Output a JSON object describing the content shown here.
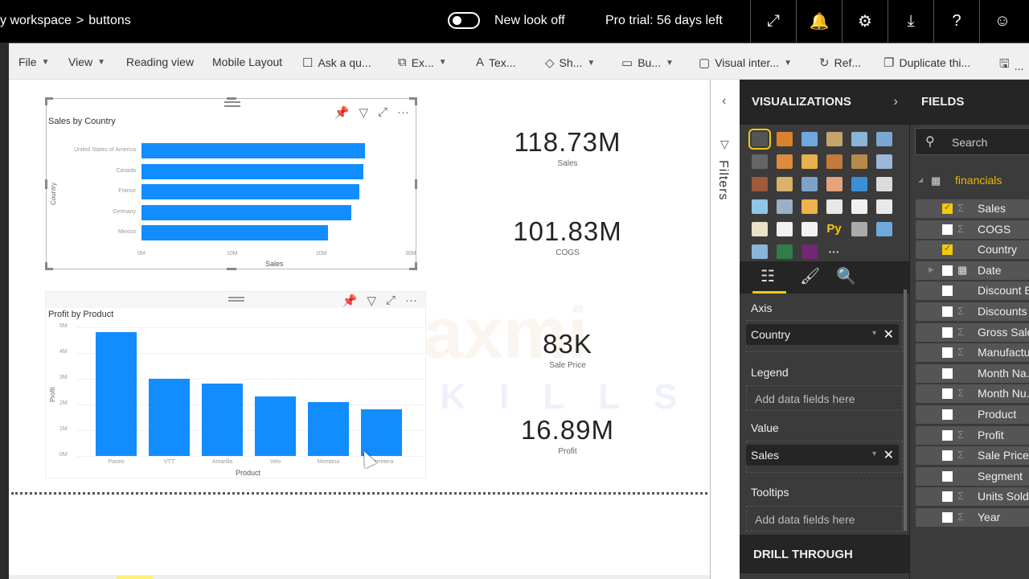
{
  "topbar": {
    "breadcrumb": [
      "y workspace",
      "buttons"
    ],
    "breadcrumb_separator": ">",
    "new_look_label": "New look off",
    "new_look_on": false,
    "trial_text": "Pro trial: 56 days left",
    "icons": [
      "expand-icon",
      "bell-icon",
      "gear-icon",
      "download-icon",
      "help-icon",
      "smiley-icon"
    ],
    "icon_glyphs": [
      "⤢",
      "🔔",
      "⚙",
      "⤓",
      "?",
      "☺"
    ]
  },
  "ribbon": {
    "items": [
      {
        "label": "File",
        "dropdown": true,
        "icon": ""
      },
      {
        "label": "View",
        "dropdown": true,
        "icon": ""
      },
      {
        "label": "Reading view",
        "dropdown": false,
        "icon": ""
      },
      {
        "label": "Mobile Layout",
        "dropdown": false,
        "icon": ""
      },
      {
        "label": "Ask a qu...",
        "dropdown": false,
        "icon": "☐"
      },
      {
        "label": "Ex...",
        "dropdown": true,
        "icon": "⧉"
      },
      {
        "label": "Tex...",
        "dropdown": false,
        "icon": "A"
      },
      {
        "label": "Sh...",
        "dropdown": true,
        "icon": "◇"
      },
      {
        "label": "Bu...",
        "dropdown": true,
        "icon": "▭"
      },
      {
        "label": "Visual inter...",
        "dropdown": true,
        "icon": "▢"
      },
      {
        "label": "Ref...",
        "dropdown": false,
        "icon": "↻"
      },
      {
        "label": "Duplicate thi...",
        "dropdown": false,
        "icon": "❐"
      },
      {
        "label": "...",
        "dropdown": false,
        "icon": "🖫"
      }
    ]
  },
  "canvas": {
    "watermark": "Laxmi",
    "watermark_sub": "SKILLS",
    "cards": [
      {
        "value": "118.73M",
        "label": "Sales"
      },
      {
        "value": "101.83M",
        "label": "COGS"
      },
      {
        "value": "83K",
        "label": "Sale Price"
      },
      {
        "value": "16.89M",
        "label": "Profit"
      }
    ]
  },
  "chart_data": [
    {
      "type": "bar",
      "orientation": "horizontal",
      "title": "Sales by Country",
      "categories": [
        "United States of America",
        "Canada",
        "France",
        "Germany",
        "Mexico"
      ],
      "values": [
        25.0,
        24.9,
        24.4,
        23.5,
        20.9
      ],
      "unit": "M",
      "xlabel": "Sales",
      "ylabel": "Country",
      "xticks": [
        "0M",
        "10M",
        "20M",
        "30M"
      ],
      "xlim": [
        0,
        30
      ],
      "color": "#118dff",
      "selected": true
    },
    {
      "type": "bar",
      "orientation": "vertical",
      "title": "Profit by Product",
      "categories": [
        "Paseo",
        "VTT",
        "Amarilla",
        "Velo",
        "Montana",
        "Carretera"
      ],
      "values": [
        4.8,
        3.0,
        2.8,
        2.3,
        2.1,
        1.8
      ],
      "unit": "M",
      "xlabel": "Product",
      "ylabel": "Profit",
      "yticks": [
        "0M",
        "1M",
        "2M",
        "3M",
        "4M",
        "5M"
      ],
      "ylim": [
        0,
        5
      ],
      "grid": true,
      "color": "#118dff"
    }
  ],
  "visual_header_icons": [
    "pin-icon",
    "filter-icon",
    "focus-mode-icon",
    "more-options-icon"
  ],
  "filters": {
    "label": "Filters"
  },
  "visualizations": {
    "title": "VISUALIZATIONS",
    "selected_index": 0,
    "tiles": [
      {
        "name": "stacked-bar",
        "c": "#555"
      },
      {
        "name": "stacked-column",
        "c": "#d9822b"
      },
      {
        "name": "clustered-bar",
        "c": "#6fa8dc"
      },
      {
        "name": "clustered-column",
        "c": "#c5a46d"
      },
      {
        "name": "100-bar",
        "c": "#8ab4d8"
      },
      {
        "name": "100-column",
        "c": "#7aa7cf"
      },
      {
        "name": "line",
        "c": "#666"
      },
      {
        "name": "area",
        "c": "#e08a3c"
      },
      {
        "name": "stacked-area",
        "c": "#e9b04d"
      },
      {
        "name": "line-column",
        "c": "#c47a3a"
      },
      {
        "name": "line-clustered",
        "c": "#b58a4a"
      },
      {
        "name": "ribbon",
        "c": "#9cb8d8"
      },
      {
        "name": "waterfall",
        "c": "#a05a3a"
      },
      {
        "name": "funnel",
        "c": "#d9b36a"
      },
      {
        "name": "scatter",
        "c": "#7da2c9"
      },
      {
        "name": "pie",
        "c": "#e6a27a"
      },
      {
        "name": "donut",
        "c": "#3a8fd6"
      },
      {
        "name": "treemap",
        "c": "#dcdcdc"
      },
      {
        "name": "map",
        "c": "#8fc7e8"
      },
      {
        "name": "filled-map",
        "c": "#9ab0c9"
      },
      {
        "name": "gauge",
        "c": "#f0b24a"
      },
      {
        "name": "card",
        "c": "#e8e8e8"
      },
      {
        "name": "multi-row-card",
        "c": "#f0f0f0"
      },
      {
        "name": "kpi",
        "c": "#eaeaea"
      },
      {
        "name": "slicer",
        "c": "#e9e2c8"
      },
      {
        "name": "table",
        "c": "#f2f2f2"
      },
      {
        "name": "matrix",
        "c": "#f2f2f2"
      },
      {
        "name": "python",
        "c": "#f2c811",
        "glyph": "Py"
      },
      {
        "name": "key-influencers",
        "c": "#aaa"
      },
      {
        "name": "decomposition-tree",
        "c": "#6fa8dc"
      },
      {
        "name": "qa",
        "c": "#8ab4d8"
      },
      {
        "name": "arcgis",
        "c": "#2f7d4a"
      },
      {
        "name": "powerapps",
        "c": "#742774"
      },
      {
        "name": "more",
        "c": "transparent",
        "glyph": "···"
      }
    ],
    "tabs": [
      "fields-tab",
      "format-tab",
      "analytics-tab"
    ],
    "wells": {
      "axis": {
        "label": "Axis",
        "field": "Country"
      },
      "legend": {
        "label": "Legend",
        "placeholder": "Add data fields here"
      },
      "value": {
        "label": "Value",
        "field": "Sales"
      },
      "tooltips": {
        "label": "Tooltips",
        "placeholder": "Add data fields here"
      }
    },
    "drill_through": "DRILL THROUGH"
  },
  "fields": {
    "title": "FIELDS",
    "search_placeholder": "Search",
    "table_name": "financials",
    "items": [
      {
        "name": "Sales",
        "checked": true,
        "sigma": true,
        "expand": false,
        "calendar": false
      },
      {
        "name": "COGS",
        "checked": false,
        "sigma": true,
        "expand": false,
        "calendar": false
      },
      {
        "name": "Country",
        "checked": true,
        "sigma": false,
        "expand": false,
        "calendar": false
      },
      {
        "name": "Date",
        "checked": false,
        "sigma": false,
        "expand": true,
        "calendar": true
      },
      {
        "name": "Discount B...",
        "checked": false,
        "sigma": false,
        "expand": false,
        "calendar": false
      },
      {
        "name": "Discounts",
        "checked": false,
        "sigma": true,
        "expand": false,
        "calendar": false
      },
      {
        "name": "Gross Sales",
        "checked": false,
        "sigma": true,
        "expand": false,
        "calendar": false
      },
      {
        "name": "Manufactur...",
        "checked": false,
        "sigma": true,
        "expand": false,
        "calendar": false
      },
      {
        "name": "Month Na...",
        "checked": false,
        "sigma": false,
        "expand": false,
        "calendar": false
      },
      {
        "name": "Month Nu...",
        "checked": false,
        "sigma": true,
        "expand": false,
        "calendar": false
      },
      {
        "name": "Product",
        "checked": false,
        "sigma": false,
        "expand": false,
        "calendar": false
      },
      {
        "name": "Profit",
        "checked": false,
        "sigma": true,
        "expand": false,
        "calendar": false
      },
      {
        "name": "Sale Price",
        "checked": false,
        "sigma": true,
        "expand": false,
        "calendar": false
      },
      {
        "name": "Segment",
        "checked": false,
        "sigma": false,
        "expand": false,
        "calendar": false
      },
      {
        "name": "Units Sold",
        "checked": false,
        "sigma": true,
        "expand": false,
        "calendar": false
      },
      {
        "name": "Year",
        "checked": false,
        "sigma": true,
        "expand": false,
        "calendar": false
      }
    ]
  }
}
